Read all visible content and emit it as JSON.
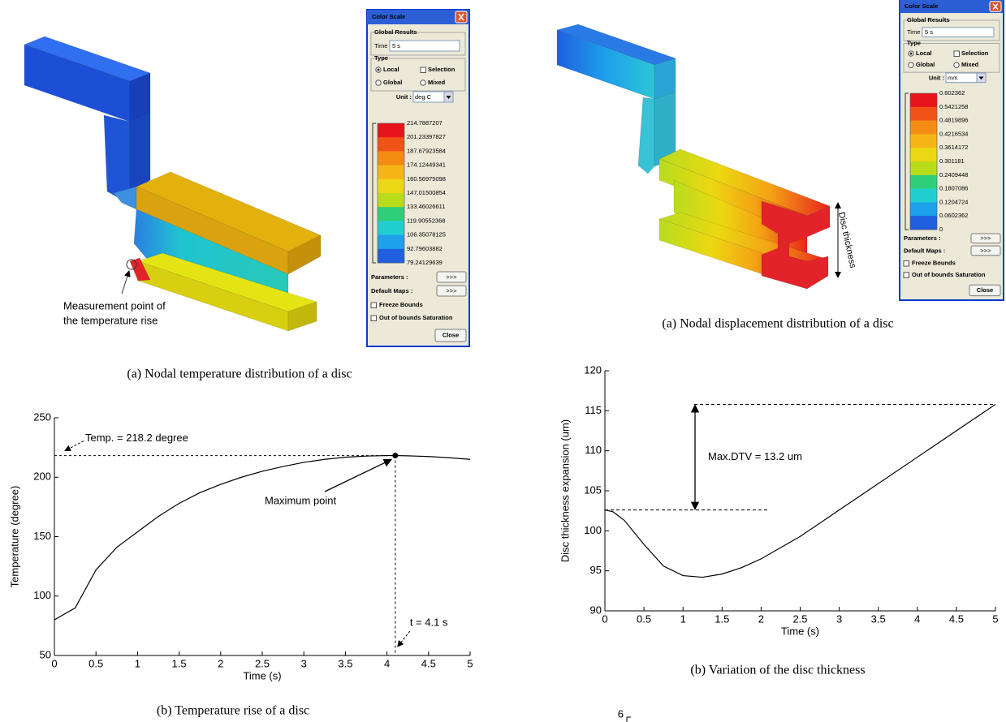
{
  "figures": [
    {
      "caption": "(a) Nodal temperature distribution of a disc",
      "annotation": [
        "Measurement point of",
        "the temperature rise"
      ],
      "color_scale": {
        "title": "Color Scale",
        "results_group": "Global Results",
        "time_label": "Time",
        "time_value": "5 s",
        "type_group": "Type",
        "options": [
          "Local",
          "Selection",
          "Global",
          "Mixed"
        ],
        "unit_label": "Unit :",
        "unit": "deg.C",
        "labels": [
          "214.7887207",
          "201.23397827",
          "187.67923584",
          "174.12449341",
          "160.56975098",
          "147.01500854",
          "133.46026611",
          "119.90552368",
          "106.35078125",
          "92.79603882",
          "79.24129639"
        ],
        "colors": [
          "#e8141c",
          "#f05218",
          "#f48c14",
          "#f5b516",
          "#ecd812",
          "#b9dc1a",
          "#2fcf7a",
          "#1fcfd0",
          "#1ea0ea",
          "#1f5fe0"
        ],
        "parameters": "Parameters :",
        "default_maps": "Default Maps :",
        "more_button": ">>>",
        "freeze_bounds": "Freeze Bounds",
        "saturation": "Out of bounds Saturation",
        "close": "Close"
      }
    },
    {
      "caption": "(a) Nodal displacement distribution of a disc",
      "annotation": [
        "Disc thickness"
      ],
      "color_scale": {
        "title": "Color Scale",
        "results_group": "Global Results",
        "time_label": "Time",
        "time_value": "5 s",
        "type_group": "Type",
        "options": [
          "Local",
          "Selection",
          "Global",
          "Mixed"
        ],
        "unit_label": "Unit :",
        "unit": "mm",
        "labels": [
          "0.602362",
          "0.5421258",
          "0.4819896",
          "0.4216534",
          "0.3614172",
          "0.301181",
          "0.2409448",
          "0.1807086",
          "0.1204724",
          "0.0602362",
          "0"
        ],
        "colors": [
          "#e8141c",
          "#f05218",
          "#f48c14",
          "#f5b516",
          "#ecd812",
          "#b9dc1a",
          "#2fcf7a",
          "#1fcfd0",
          "#1ea0ea",
          "#1f5fe0"
        ],
        "parameters": "Parameters :",
        "default_maps": "Default Maps :",
        "more_button": ">>>",
        "freeze_bounds": "Freeze Bounds",
        "saturation": "Out of bounds Saturation",
        "close": "Close"
      }
    }
  ],
  "chart_data": [
    {
      "type": "line",
      "caption": "(b) Temperature rise of a disc",
      "xlabel": "Time (s)",
      "ylabel": "Temperature (degree)",
      "x": [
        0,
        0.25,
        0.5,
        0.75,
        1,
        1.25,
        1.5,
        1.75,
        2,
        2.25,
        2.5,
        2.75,
        3,
        3.25,
        3.5,
        3.75,
        4,
        4.1,
        4.25,
        4.5,
        4.75,
        5
      ],
      "series": [
        {
          "color": "#000000",
          "values": [
            80,
            90,
            122,
            141,
            154,
            167,
            178,
            187,
            194,
            200,
            205,
            209,
            212.5,
            215,
            216.8,
            217.8,
            218.2,
            218.2,
            218,
            217.4,
            216.4,
            215
          ]
        }
      ],
      "xlim": [
        0,
        5
      ],
      "ylim": [
        50,
        250
      ],
      "xticks": [
        0,
        0.5,
        1,
        1.5,
        2,
        2.5,
        3,
        3.5,
        4,
        4.5,
        5
      ],
      "yticks": [
        50,
        100,
        150,
        200,
        250
      ],
      "max_point": {
        "x": 4.1,
        "y": 218.2
      },
      "annotations": {
        "max_value": "Temp. = 218.2 degree",
        "max_point": "Maximum point",
        "max_time": "t = 4.1 s"
      }
    },
    {
      "type": "line",
      "caption": "(b) Variation of the disc thickness",
      "xlabel": "Time (s)",
      "ylabel": "Disc thickness expansion (um)",
      "x": [
        0,
        0.1,
        0.25,
        0.5,
        0.75,
        1,
        1.25,
        1.5,
        1.75,
        2,
        2.5,
        3,
        3.5,
        4,
        4.5,
        5
      ],
      "series": [
        {
          "color": "#000000",
          "values": [
            102.6,
            102.4,
            101.3,
            98.3,
            95.6,
            94.4,
            94.2,
            94.6,
            95.4,
            96.5,
            99.3,
            102.6,
            105.9,
            109.2,
            112.5,
            115.8
          ]
        }
      ],
      "xlim": [
        0,
        5
      ],
      "ylim": [
        90,
        120
      ],
      "xticks": [
        0,
        0.5,
        1,
        1.5,
        2,
        2.5,
        3,
        3.5,
        4,
        4.5,
        5
      ],
      "yticks": [
        90,
        95,
        100,
        105,
        110,
        115,
        120
      ],
      "reference_values": [
        102.6,
        115.8
      ],
      "annotations": {
        "dtv": "Max.DTV = 13.2 um"
      }
    }
  ],
  "cropped_figure": {
    "ytick": 6
  }
}
